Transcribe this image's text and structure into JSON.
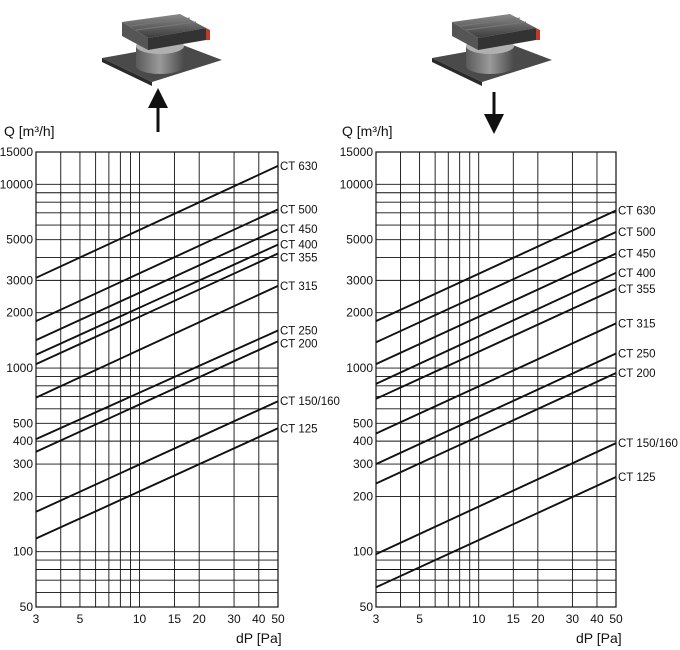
{
  "chart_data": [
    {
      "type": "line",
      "flow_arrow": "up",
      "xscale": "log",
      "yscale": "log",
      "xlim": [
        3,
        50
      ],
      "ylim": [
        50,
        15000
      ],
      "xlabel": "dP [Pa]",
      "ylabel": "Q [m³/h]",
      "x_ticks": [
        3,
        5,
        10,
        15,
        20,
        30,
        40,
        50
      ],
      "y_ticks": [
        50,
        100,
        200,
        300,
        400,
        500,
        1000,
        2000,
        3000,
        5000,
        10000,
        15000
      ],
      "x_grid": [
        3,
        4,
        5,
        6,
        7,
        8,
        9,
        10,
        15,
        20,
        30,
        40,
        50
      ],
      "y_grid": [
        50,
        60,
        70,
        80,
        90,
        100,
        200,
        300,
        400,
        500,
        600,
        700,
        800,
        900,
        1000,
        2000,
        3000,
        4000,
        5000,
        6000,
        7000,
        8000,
        9000,
        10000,
        15000
      ],
      "series": [
        {
          "name": "CT 630",
          "x": [
            3,
            50
          ],
          "y": [
            3100,
            12600
          ]
        },
        {
          "name": "CT 500",
          "x": [
            3,
            50
          ],
          "y": [
            1800,
            7300
          ]
        },
        {
          "name": "CT 450",
          "x": [
            3,
            50
          ],
          "y": [
            1420,
            5700
          ]
        },
        {
          "name": "CT 400",
          "x": [
            3,
            50
          ],
          "y": [
            1180,
            4700
          ]
        },
        {
          "name": "CT 355",
          "x": [
            3,
            50
          ],
          "y": [
            1050,
            4200
          ]
        },
        {
          "name": "CT 315",
          "x": [
            3,
            50
          ],
          "y": [
            690,
            2800
          ]
        },
        {
          "name": "CT 250",
          "x": [
            3,
            50
          ],
          "y": [
            410,
            1600
          ]
        },
        {
          "name": "CT 200",
          "x": [
            3,
            50
          ],
          "y": [
            350,
            1400
          ]
        },
        {
          "name": "CT 150/160",
          "x": [
            3,
            50
          ],
          "y": [
            165,
            660
          ]
        },
        {
          "name": "CT 125",
          "x": [
            3,
            50
          ],
          "y": [
            118,
            470
          ]
        }
      ]
    },
    {
      "type": "line",
      "flow_arrow": "down",
      "xscale": "log",
      "yscale": "log",
      "xlim": [
        3,
        50
      ],
      "ylim": [
        50,
        15000
      ],
      "xlabel": "dP [Pa]",
      "ylabel": "Q [m³/h]",
      "x_ticks": [
        3,
        5,
        10,
        15,
        20,
        30,
        40,
        50
      ],
      "y_ticks": [
        50,
        100,
        200,
        300,
        400,
        500,
        1000,
        2000,
        3000,
        5000,
        10000,
        15000
      ],
      "x_grid": [
        3,
        4,
        5,
        6,
        7,
        8,
        9,
        10,
        15,
        20,
        30,
        40,
        50
      ],
      "y_grid": [
        50,
        60,
        70,
        80,
        90,
        100,
        200,
        300,
        400,
        500,
        600,
        700,
        800,
        900,
        1000,
        2000,
        3000,
        4000,
        5000,
        6000,
        7000,
        8000,
        9000,
        10000,
        15000
      ],
      "series": [
        {
          "name": "CT 630",
          "x": [
            3,
            50
          ],
          "y": [
            1800,
            7200
          ]
        },
        {
          "name": "CT 500",
          "x": [
            3,
            50
          ],
          "y": [
            1380,
            5500
          ]
        },
        {
          "name": "CT 450",
          "x": [
            3,
            50
          ],
          "y": [
            1050,
            4200
          ]
        },
        {
          "name": "CT 400",
          "x": [
            3,
            50
          ],
          "y": [
            820,
            3300
          ]
        },
        {
          "name": "CT 355",
          "x": [
            3,
            50
          ],
          "y": [
            680,
            2700
          ]
        },
        {
          "name": "CT 315",
          "x": [
            3,
            50
          ],
          "y": [
            440,
            1750
          ]
        },
        {
          "name": "CT 250",
          "x": [
            3,
            50
          ],
          "y": [
            300,
            1200
          ]
        },
        {
          "name": "CT 200",
          "x": [
            3,
            50
          ],
          "y": [
            235,
            940
          ]
        },
        {
          "name": "CT 150/160",
          "x": [
            3,
            50
          ],
          "y": [
            97,
            390
          ]
        },
        {
          "name": "CT 125",
          "x": [
            3,
            50
          ],
          "y": [
            64,
            255
          ]
        }
      ]
    }
  ]
}
